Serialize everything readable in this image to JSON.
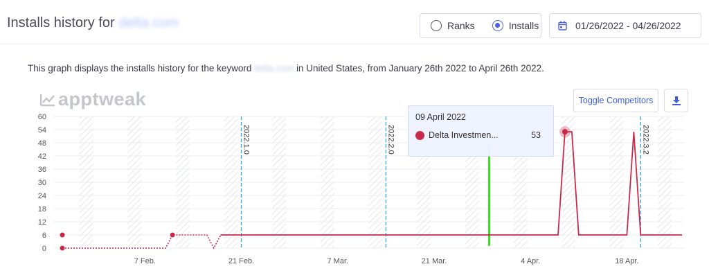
{
  "header": {
    "title": "Installs history for",
    "app_name_blurred": "delta.com"
  },
  "toggle": {
    "ranks_label": "Ranks",
    "installs_label": "Installs",
    "selected": "Installs"
  },
  "date_range": {
    "value": "01/26/2022 - 04/26/2022",
    "icon": "calendar-icon"
  },
  "description": {
    "prefix": "This graph displays the installs history for the keyword",
    "keyword_blurred": "delta.com",
    "suffix": "in United States, from January 26th 2022 to April 26th 2022."
  },
  "logo": {
    "text": "apptweak",
    "icon": "trend-chart-icon"
  },
  "buttons": {
    "toggle_competitors": "Toggle Competitors",
    "download_icon": "download-icon"
  },
  "tooltip": {
    "date": "09 April 2022",
    "series_name": "Delta Investmen...",
    "value": "53"
  },
  "colors": {
    "accent": "#4a5ee0",
    "series": "#c8294a",
    "version_line": "#3aa6d8",
    "current_marker": "#33e01a"
  },
  "chart_data": {
    "type": "line",
    "title": "",
    "xlabel": "",
    "ylabel": "",
    "ylim": [
      0,
      60
    ],
    "y_ticks": [
      0,
      6,
      12,
      18,
      24,
      30,
      36,
      42,
      48,
      54,
      60
    ],
    "x_range": [
      "2022-01-26",
      "2022-04-26"
    ],
    "x_tick_labels": [
      {
        "label": "7 Feb.",
        "date": "2022-02-07"
      },
      {
        "label": "21 Feb.",
        "date": "2022-02-21"
      },
      {
        "label": "7 Mar.",
        "date": "2022-03-07"
      },
      {
        "label": "21 Mar.",
        "date": "2022-03-21"
      },
      {
        "label": "4 Apr.",
        "date": "2022-04-04"
      },
      {
        "label": "18 Apr.",
        "date": "2022-04-18"
      }
    ],
    "version_markers": [
      {
        "label": "2022.1.0",
        "date": "2022-02-21"
      },
      {
        "label": "2022.2.0",
        "date": "2022-03-14"
      },
      {
        "label": "2022.3.2",
        "date": "2022-04-20"
      }
    ],
    "highlighted_date": "2022-04-09",
    "current_date_marker": "2022-03-29",
    "grid": true,
    "series": [
      {
        "name": "Delta Investmen...",
        "points": [
          {
            "x": "2022-01-26",
            "y": 0
          },
          {
            "x": "2022-02-10",
            "y": 0
          },
          {
            "x": "2022-02-11",
            "y": 6
          },
          {
            "x": "2022-02-16",
            "y": 6
          },
          {
            "x": "2022-02-17",
            "y": 0
          },
          {
            "x": "2022-02-18",
            "y": 6
          },
          {
            "x": "2022-04-08",
            "y": 6
          },
          {
            "x": "2022-04-09",
            "y": 53
          },
          {
            "x": "2022-04-10",
            "y": 53
          },
          {
            "x": "2022-04-11",
            "y": 6
          },
          {
            "x": "2022-04-18",
            "y": 6
          },
          {
            "x": "2022-04-19",
            "y": 53
          },
          {
            "x": "2022-04-20",
            "y": 6
          },
          {
            "x": "2022-04-26",
            "y": 6
          }
        ],
        "dotted_until": "2022-02-18",
        "isolated_points": [
          {
            "x": "2022-01-26",
            "y": 6
          }
        ]
      }
    ]
  }
}
